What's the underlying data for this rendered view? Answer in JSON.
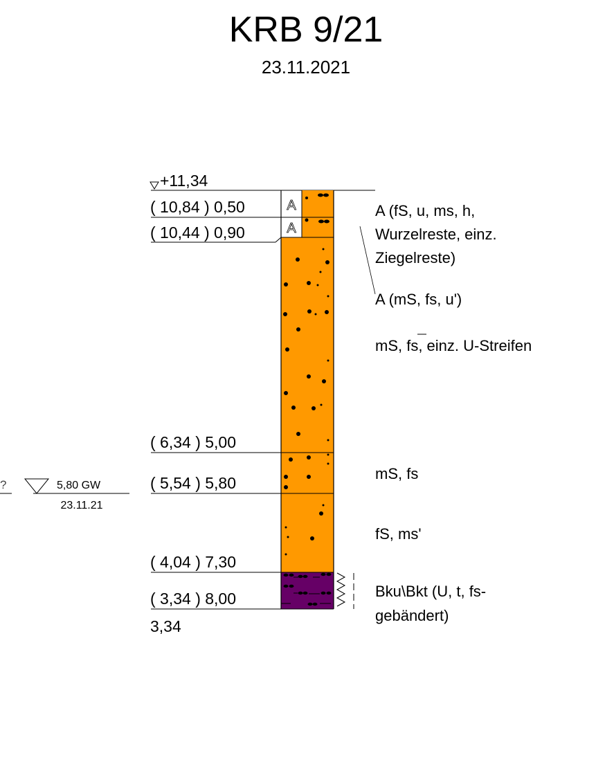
{
  "header": {
    "title": "KRB 9/21",
    "date": "23.11.2021"
  },
  "borehole": {
    "top_elevation": "+11,34",
    "bottom_elevation": "3,34",
    "boundaries": [
      {
        "label": "( 10,84 ) 0,50"
      },
      {
        "label": "( 10,44 ) 0,90"
      },
      {
        "label": "( 6,34 ) 5,00"
      },
      {
        "label": "( 5,54 ) 5,80"
      },
      {
        "label": "( 4,04 ) 7,30"
      },
      {
        "label": "( 3,34 ) 8,00"
      }
    ],
    "layers": [
      {
        "code": "A",
        "description": "A (fS, u, ms, h, Wurzelreste, einz. Ziegelreste)",
        "desc_lines": [
          "A (fS, u, ms, h,",
          "Wurzelreste, einz.",
          "Ziegelreste)"
        ],
        "color": "#ff9900"
      },
      {
        "code": "A",
        "description": "A (mS, fs, u')",
        "desc_lines": [
          "A (mS, fs, u')"
        ],
        "color": "#ff9900"
      },
      {
        "code": "",
        "description": "mS, fs, einz. U-Streifen",
        "desc_lines": [
          "mS, fs, einz. U-Streifen"
        ],
        "color": "#ff9900"
      },
      {
        "code": "",
        "description": "mS, fs",
        "desc_lines": [
          "mS, fs"
        ],
        "color": "#ff9900"
      },
      {
        "code": "",
        "description": "fS, ms'",
        "desc_lines": [
          "fS, ms'"
        ],
        "color": "#ff9900"
      },
      {
        "code": "",
        "description": "Bku\\Bkt (U, t, fs-gebändert)",
        "desc_lines": [
          "Bku\\Bkt (U, t, fs-",
          "gebändert)"
        ],
        "color": "#660066"
      }
    ]
  },
  "groundwater": {
    "label": "5,80 GW",
    "date": "23.11.21",
    "edge_mark": "?"
  }
}
